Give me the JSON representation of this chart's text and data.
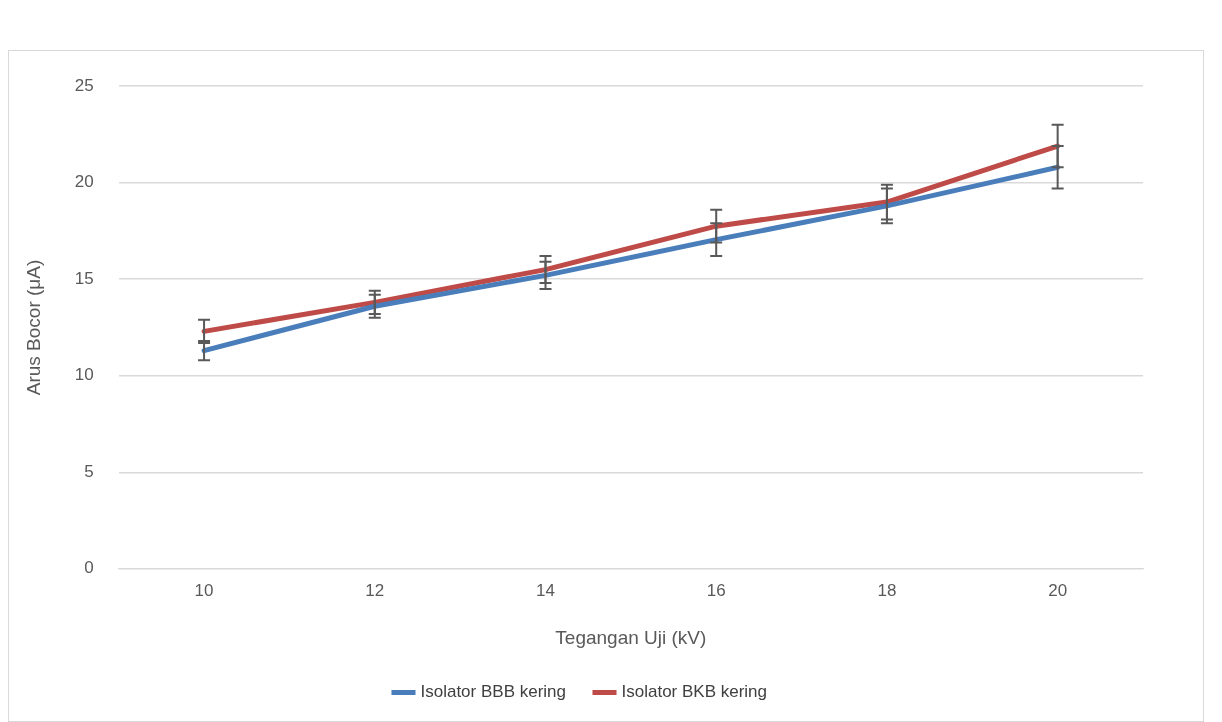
{
  "chart_data": {
    "type": "line",
    "xlabel": "Tegangan Uji (kV)",
    "ylabel": "Arus Bocor (μA)",
    "categories": [
      "10",
      "12",
      "14",
      "16",
      "18",
      "20"
    ],
    "series": [
      {
        "name": "Isolator BBB kering",
        "color": "#4a7ebb",
        "values": [
          11.3,
          13.6,
          15.2,
          17.05,
          18.8,
          20.8
        ],
        "errors": [
          0.5,
          0.6,
          0.7,
          0.85,
          0.9,
          1.1
        ]
      },
      {
        "name": "Isolator BKB kering",
        "color": "#be4b48",
        "values": [
          12.3,
          13.8,
          15.5,
          17.75,
          19.0,
          21.9
        ],
        "errors": [
          0.6,
          0.6,
          0.7,
          0.85,
          0.9,
          1.1
        ]
      }
    ],
    "ylim": [
      0,
      25
    ],
    "yticks": [
      0,
      5,
      10,
      15,
      20,
      25
    ],
    "grid": "y",
    "legend": "bottom",
    "marker": "none",
    "line_style": "solid"
  }
}
